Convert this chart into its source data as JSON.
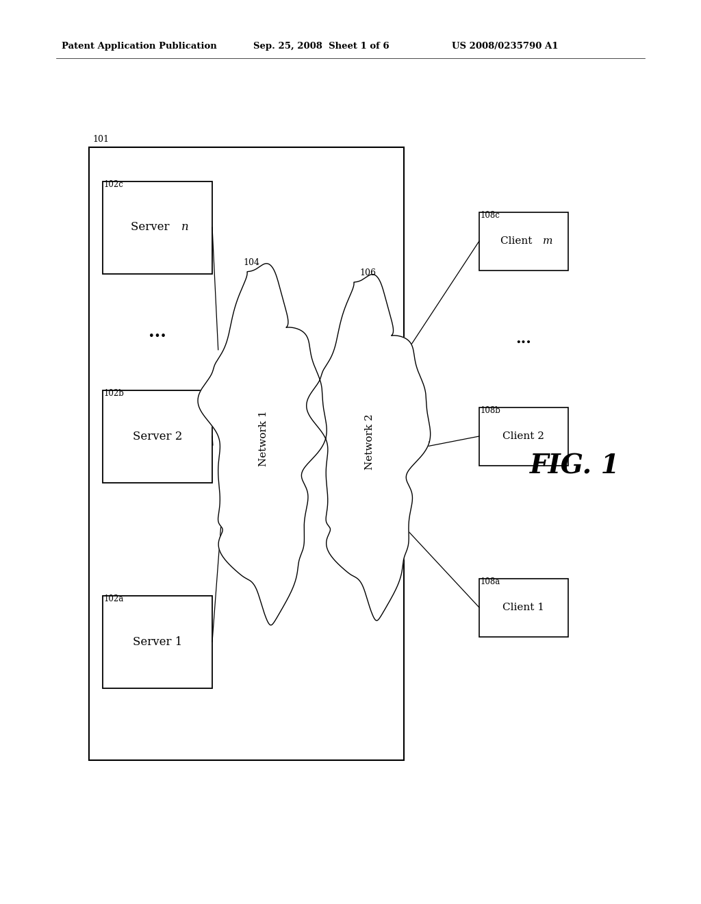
{
  "bg_color": "#ffffff",
  "header_left": "Patent Application Publication",
  "header_center": "Sep. 25, 2008  Sheet 1 of 6",
  "header_right": "US 2008/0235790 A1",
  "fig_label": "FIG. 1",
  "outer_box_label": "101",
  "server_refs": [
    "102a",
    "102b",
    "102c"
  ],
  "server_labels": [
    "Server 1",
    "Server 2",
    "Server "
  ],
  "server_italics": [
    "",
    "",
    "n"
  ],
  "dots_text": "...",
  "network1_label": "Network 1",
  "network1_ref": "104",
  "network2_label": "Network 2",
  "network2_ref": "106",
  "client_refs": [
    "108a",
    "108b",
    "108c"
  ],
  "client_labels": [
    "Client 1",
    "Client 2",
    "Client "
  ],
  "client_italics": [
    "",
    "",
    "m"
  ]
}
